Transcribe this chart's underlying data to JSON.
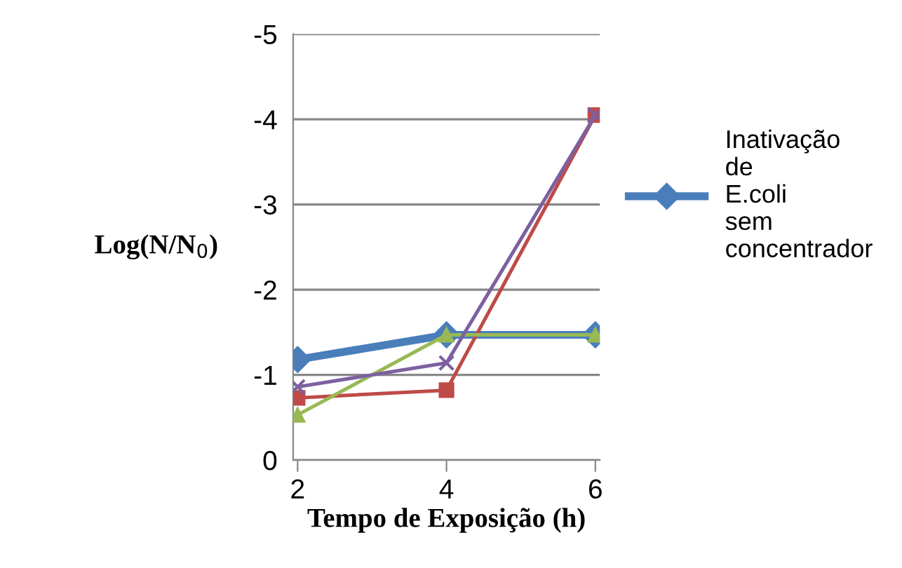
{
  "chart_data": {
    "type": "line",
    "xlabel": "Tempo de Exposição (h)",
    "ylabel": "Log(N/N$_{0}$)",
    "categories": [
      "2",
      "4",
      "6"
    ],
    "ylim": [
      0,
      -5
    ],
    "yticks": [
      0,
      -1,
      -2,
      -3,
      -4,
      -5
    ],
    "grid": "y",
    "legend": "right",
    "series": [
      {
        "name": "Inativação de E.coli sem concentrador",
        "color": "#4a7ebb",
        "marker": "diamond",
        "values": [
          -1.18,
          -1.47,
          -1.47
        ]
      },
      {
        "color": "#be4b48",
        "marker": "square",
        "values": [
          -0.73,
          -0.82,
          -4.05
        ]
      },
      {
        "color": "#98b954",
        "marker": "triangle",
        "values": [
          -0.53,
          -1.47,
          -1.47
        ]
      },
      {
        "color": "#7d60a0",
        "marker": "cross",
        "values": [
          -0.86,
          -1.14,
          -4.05
        ]
      }
    ]
  }
}
